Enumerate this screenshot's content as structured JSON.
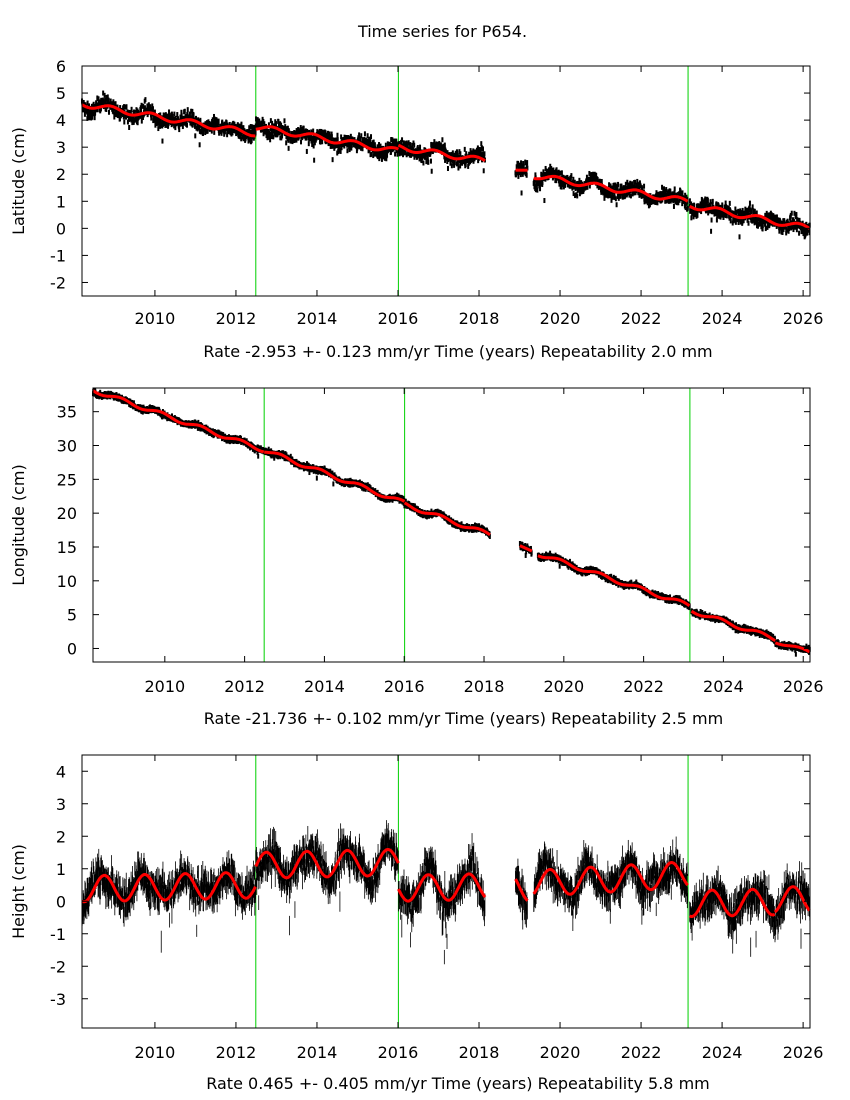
{
  "title": "Time series for P654.",
  "colors": {
    "data": "#000000",
    "fit": "#ff0000",
    "break_lines": "#00d000",
    "frame": "#000000"
  },
  "chart_data": [
    {
      "type": "scatter",
      "ylabel": "Latitude (cm)",
      "xlabel": "Time (years)",
      "rate_text": "Rate -2.953 +- 0.123 mm/yr",
      "repeatability_text": "Repeatability 2.0 mm",
      "xlim": [
        2008.2,
        2026.17
      ],
      "ylim": [
        -2.5,
        6
      ],
      "xticks": [
        2010,
        2012,
        2014,
        2016,
        2018,
        2020,
        2022,
        2024,
        2026
      ],
      "yticks": [
        -2,
        -1,
        0,
        1,
        2,
        3,
        4,
        5,
        6
      ],
      "breaks": [
        2012.49,
        2016.01,
        2023.16
      ],
      "fit_segments": [
        {
          "start": 2008.2,
          "end": 2012.49,
          "y_start": 4.6,
          "y_end": 3.5,
          "annual_amp": 0.1,
          "peak": 0.9
        },
        {
          "start": 2012.49,
          "end": 2016.01,
          "y_start": 3.75,
          "y_end": 2.85,
          "annual_amp": 0.1,
          "peak": 0.9
        },
        {
          "start": 2016.01,
          "end": 2018.15,
          "y_start": 3.0,
          "y_end": 2.5,
          "annual_amp": 0.1,
          "peak": 0.9
        },
        {
          "start": 2018.9,
          "end": 2019.2,
          "y_start": 2.15,
          "y_end": 2.15,
          "annual_amp": 0.0,
          "peak": 0.9
        },
        {
          "start": 2019.35,
          "end": 2023.16,
          "y_start": 1.95,
          "y_end": 1.0,
          "annual_amp": 0.1,
          "peak": 0.9
        },
        {
          "start": 2023.2,
          "end": 2026.17,
          "y_start": 0.85,
          "y_end": 0.0,
          "annual_amp": 0.1,
          "peak": 0.9
        }
      ],
      "scatter_spread": 0.3
    },
    {
      "type": "scatter",
      "ylabel": "Longitude (cm)",
      "xlabel": "Time (years)",
      "rate_text": "Rate -21.736 +- 0.102 mm/yr",
      "repeatability_text": "Repeatability 2.5 mm",
      "xlim": [
        2008.2,
        2026.17
      ],
      "ylim": [
        -2,
        38.5
      ],
      "xticks": [
        2010,
        2012,
        2014,
        2016,
        2018,
        2020,
        2022,
        2024,
        2026
      ],
      "yticks": [
        0,
        5,
        10,
        15,
        20,
        25,
        30,
        35
      ],
      "breaks": [
        2012.49,
        2016.01,
        2023.16
      ],
      "fit_segments": [
        {
          "start": 2008.2,
          "end": 2012.49,
          "y_start": 38.2,
          "y_end": 29.3,
          "annual_amp": 0.3,
          "peak": 0.9
        },
        {
          "start": 2012.49,
          "end": 2016.01,
          "y_start": 29.3,
          "y_end": 21.5,
          "annual_amp": 0.3,
          "peak": 0.9
        },
        {
          "start": 2016.01,
          "end": 2018.15,
          "y_start": 21.3,
          "y_end": 16.8,
          "annual_amp": 0.3,
          "peak": 0.9
        },
        {
          "start": 2018.9,
          "end": 2019.2,
          "y_start": 15.2,
          "y_end": 14.4,
          "annual_amp": 0.0,
          "peak": 0.9
        },
        {
          "start": 2019.35,
          "end": 2023.16,
          "y_start": 14.0,
          "y_end": 6.3,
          "annual_amp": 0.3,
          "peak": 0.9
        },
        {
          "start": 2023.2,
          "end": 2025.3,
          "y_start": 5.6,
          "y_end": 1.4,
          "annual_amp": 0.3,
          "peak": 0.9
        },
        {
          "start": 2025.3,
          "end": 2026.17,
          "y_start": 1.0,
          "y_end": -0.5,
          "annual_amp": 0.2,
          "peak": 0.9
        }
      ],
      "scatter_spread": 0.4
    },
    {
      "type": "scatter",
      "ylabel": "Height (cm)",
      "xlabel": "Time (years)",
      "rate_text": "Rate 0.465 +- 0.405 mm/yr",
      "repeatability_text": "Repeatability 5.8 mm",
      "xlim": [
        2008.2,
        2026.17
      ],
      "ylim": [
        -3.9,
        4.5
      ],
      "xticks": [
        2010,
        2012,
        2014,
        2016,
        2018,
        2020,
        2022,
        2024,
        2026
      ],
      "yticks": [
        -3,
        -2,
        -1,
        0,
        1,
        2,
        3,
        4
      ],
      "breaks": [
        2012.49,
        2016.01,
        2023.16
      ],
      "fit_segments": [
        {
          "start": 2008.2,
          "end": 2012.49,
          "y_start": 0.38,
          "y_end": 0.5,
          "annual_amp": 0.4,
          "peak": 0.75
        },
        {
          "start": 2012.49,
          "end": 2016.01,
          "y_start": 1.1,
          "y_end": 1.2,
          "annual_amp": 0.4,
          "peak": 0.75
        },
        {
          "start": 2016.01,
          "end": 2018.15,
          "y_start": 0.4,
          "y_end": 0.45,
          "annual_amp": 0.4,
          "peak": 0.75
        },
        {
          "start": 2018.9,
          "end": 2019.2,
          "y_start": 0.45,
          "y_end": 0.4,
          "annual_amp": 0.4,
          "peak": 0.75
        },
        {
          "start": 2019.35,
          "end": 2023.16,
          "y_start": 0.55,
          "y_end": 0.82,
          "annual_amp": 0.4,
          "peak": 0.75
        },
        {
          "start": 2023.2,
          "end": 2025.3,
          "y_start": -0.07,
          "y_end": -0.02,
          "annual_amp": 0.4,
          "peak": 0.75
        },
        {
          "start": 2025.3,
          "end": 2026.17,
          "y_start": 0.05,
          "y_end": 0.05,
          "annual_amp": 0.4,
          "peak": 0.75
        }
      ],
      "scatter_spread": 0.55
    }
  ]
}
